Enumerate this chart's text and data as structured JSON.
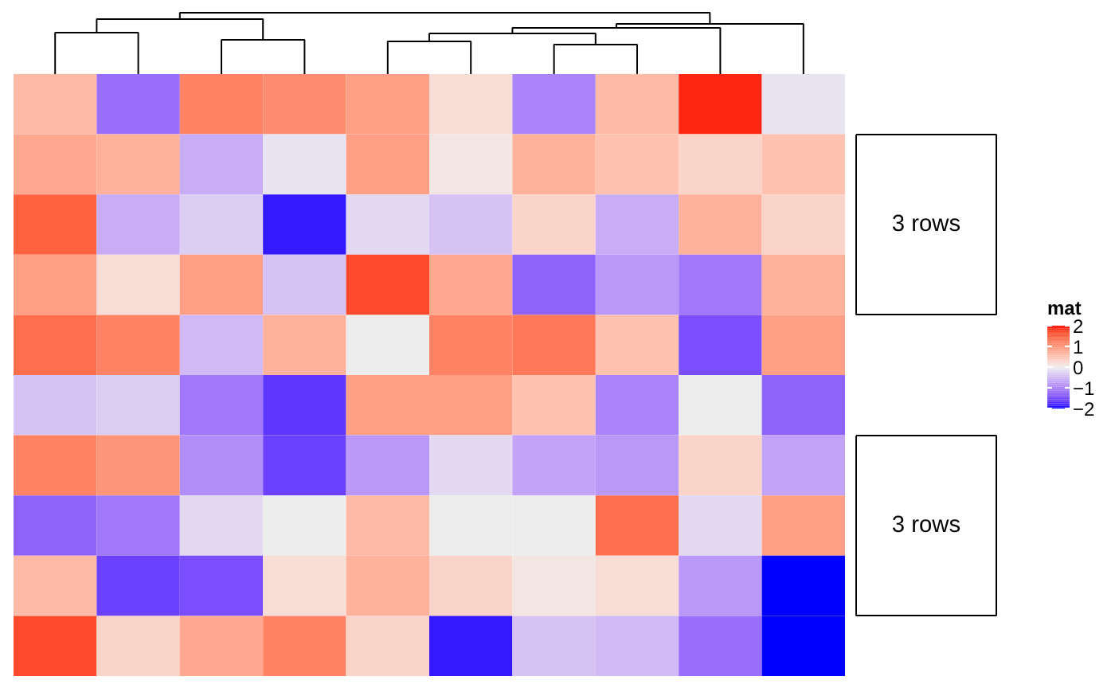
{
  "chart_data": {
    "type": "heatmap",
    "categories": [
      null,
      null,
      null,
      null,
      null,
      null,
      null,
      null,
      null,
      null
    ],
    "y_categories": [
      null,
      null,
      null,
      null,
      null,
      null,
      null,
      null,
      null,
      null
    ],
    "cells": [
      [
        0.6,
        -1.2,
        1.2,
        1.1,
        0.9,
        0.2,
        -1.0,
        0.6,
        1.9,
        -0.1
      ],
      [
        0.8,
        0.7,
        -0.6,
        -0.1,
        0.9,
        0.1,
        0.7,
        0.5,
        0.3,
        0.5
      ],
      [
        1.5,
        -0.6,
        -0.3,
        -1.9,
        -0.2,
        -0.4,
        0.3,
        -0.6,
        0.7,
        0.3
      ],
      [
        0.9,
        0.2,
        0.9,
        -0.4,
        1.7,
        0.8,
        -1.3,
        -0.8,
        -1.1,
        0.7
      ],
      [
        1.4,
        1.2,
        -0.5,
        0.7,
        0.0,
        1.2,
        1.3,
        0.5,
        -1.5,
        0.9
      ],
      [
        -0.4,
        -0.3,
        -1.1,
        -1.7,
        0.9,
        0.9,
        0.5,
        -1.0,
        0.0,
        -1.3
      ],
      [
        1.2,
        1.0,
        -0.9,
        -1.6,
        -0.8,
        -0.2,
        -0.7,
        -0.8,
        0.3,
        -0.7
      ],
      [
        -1.3,
        -1.1,
        -0.2,
        0.0,
        0.6,
        0.0,
        0.0,
        1.4,
        -0.2,
        0.9
      ],
      [
        0.6,
        -1.6,
        -1.5,
        0.2,
        0.7,
        0.3,
        0.1,
        0.2,
        -0.8,
        -2.0
      ],
      [
        1.7,
        0.3,
        0.8,
        1.2,
        0.3,
        -1.9,
        -0.4,
        -0.5,
        -1.2,
        -2.0
      ]
    ],
    "clim": [
      -2,
      2
    ],
    "cticks": [
      -2,
      -1,
      0,
      1,
      2
    ],
    "clabel": "mat",
    "annotations": [
      "3 rows",
      "3 rows"
    ]
  }
}
